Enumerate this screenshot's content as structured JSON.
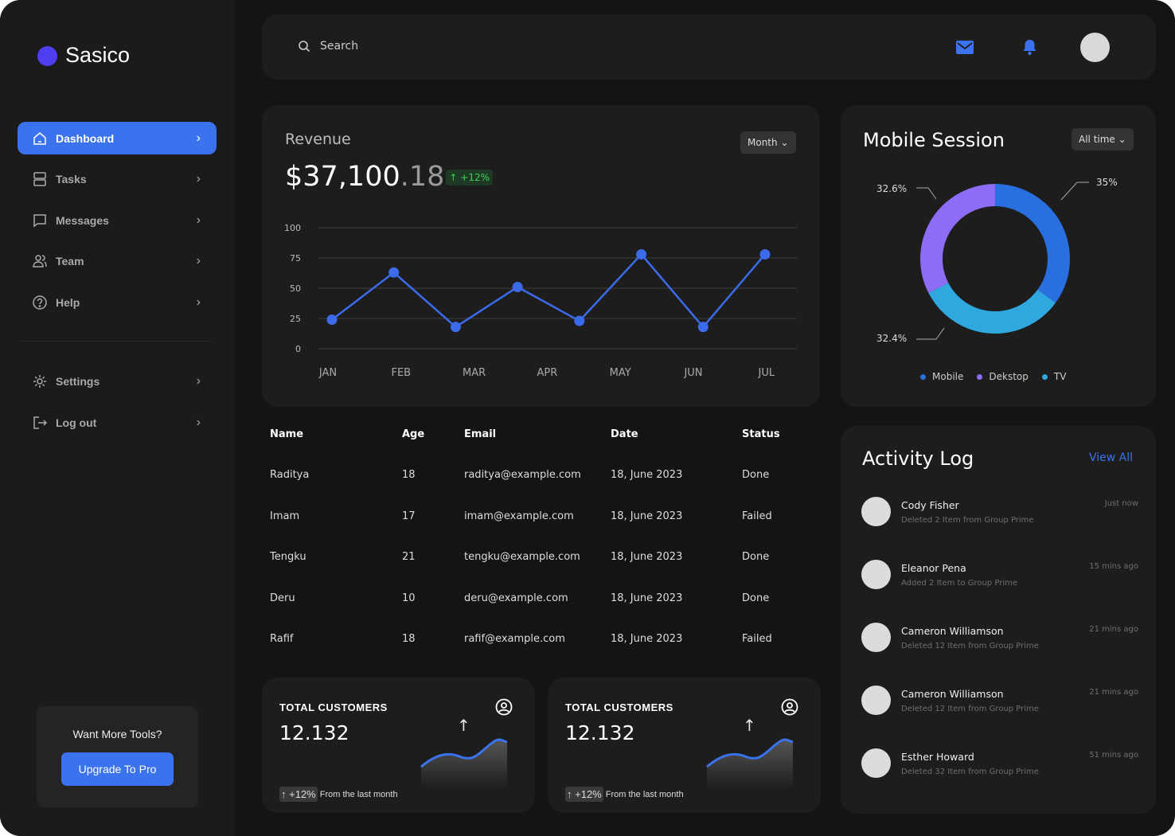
{
  "brand": {
    "name": "Sasico",
    "color": "#4f3df0"
  },
  "sidebar": {
    "items": [
      {
        "label": "Dashboard",
        "icon": "home-icon"
      },
      {
        "label": "Tasks",
        "icon": "tasks-icon"
      },
      {
        "label": "Messages",
        "icon": "message-icon"
      },
      {
        "label": "Team",
        "icon": "team-icon"
      },
      {
        "label": "Help",
        "icon": "help-icon"
      }
    ],
    "bottom": [
      {
        "label": "Settings",
        "icon": "gear-icon"
      },
      {
        "label": "Log out",
        "icon": "logout-icon"
      }
    ],
    "promo": {
      "text": "Want More Tools?",
      "button": "Upgrade To Pro"
    }
  },
  "topbar": {
    "search_placeholder": "Search"
  },
  "revenue": {
    "title": "Revenue",
    "value_main": "$37,100",
    "value_decimal": ".18",
    "change": "+12%",
    "filter": "Month"
  },
  "chart_data": {
    "type": "line",
    "title": "Revenue",
    "x": [
      "JAN",
      "FEB",
      "MAR",
      "APR",
      "",
      "MAY",
      "JUN",
      "JUL"
    ],
    "categories": [
      "JAN",
      "FEB",
      "MAR",
      "APR",
      "MAY",
      "JUN",
      "JUL"
    ],
    "values": [
      24,
      63,
      18,
      51,
      23,
      78,
      18,
      78
    ],
    "yticks": [
      100,
      75,
      50,
      25,
      0
    ],
    "ylim": [
      0,
      100
    ],
    "grid": true,
    "color": "#3b6bea"
  },
  "session": {
    "title": "Mobile Session",
    "filter": "All time",
    "slices": [
      {
        "name": "Mobile",
        "value": 35,
        "label": "35%",
        "color": "#2a6fe0"
      },
      {
        "name": "TV",
        "value": 32.4,
        "label": "32.4%",
        "color": "#2fa8df"
      },
      {
        "name": "Dekstop",
        "value": 32.6,
        "label": "32.6%",
        "color": "#8d6cf6"
      }
    ],
    "legend": [
      {
        "name": "Mobile",
        "color": "#2a6fe0"
      },
      {
        "name": "Dekstop",
        "color": "#8d6cf6"
      },
      {
        "name": "TV",
        "color": "#2fa8df"
      }
    ]
  },
  "table": {
    "headers": [
      "Name",
      "Age",
      "Email",
      "Date",
      "Status"
    ],
    "rows": [
      [
        "Raditya",
        "18",
        "raditya@example.com",
        "18, June 2023",
        "Done"
      ],
      [
        "Imam",
        "17",
        "imam@example.com",
        "18, June 2023",
        "Failed"
      ],
      [
        "Tengku",
        "21",
        "tengku@example.com",
        "18, June 2023",
        "Done"
      ],
      [
        "Deru",
        "10",
        "deru@example.com",
        "18, June 2023",
        "Done"
      ],
      [
        "Rafif",
        "18",
        "rafif@example.com",
        "18, June 2023",
        "Failed"
      ]
    ]
  },
  "stats": [
    {
      "label": "TOTAL CUSTOMERS",
      "value": "12.132",
      "change": "+12%",
      "note": "From the last month"
    },
    {
      "label": "TOTAL CUSTOMERS",
      "value": "12.132",
      "change": "+12%",
      "note": "From the last month"
    }
  ],
  "activity": {
    "title": "Activity Log",
    "view_all": "View All",
    "items": [
      {
        "name": "Cody Fisher",
        "desc": "Deleted 2 Item from Group Prime",
        "time": "Just now"
      },
      {
        "name": "Eleanor Pena",
        "desc": "Added 2 Item to Group Prime",
        "time": "15 mins ago"
      },
      {
        "name": "Cameron Williamson",
        "desc": "Deleted 12 Item from Group Prime",
        "time": "21 mins ago"
      },
      {
        "name": "Cameron Williamson",
        "desc": "Deleted 12 Item from Group Prime",
        "time": "21 mins ago"
      },
      {
        "name": "Esther Howard",
        "desc": "Deleted 32 Item from Group Prime",
        "time": "51 mins ago"
      }
    ]
  }
}
